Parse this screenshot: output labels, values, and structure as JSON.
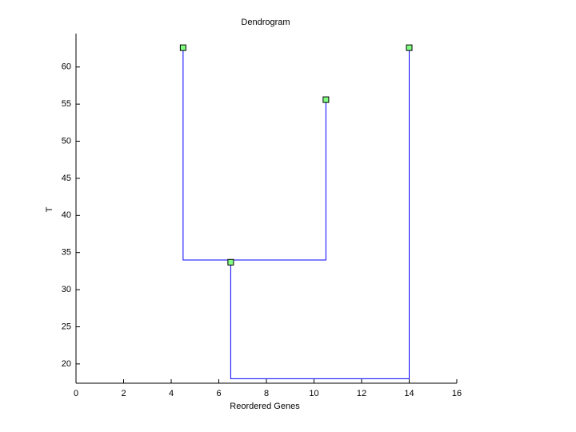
{
  "chart_data": {
    "type": "dendrogram",
    "title": "Dendrogram",
    "x_label": "Reordered Genes",
    "y_label": "T",
    "series": [
      {
        "color": "#0000ff",
        "x": [
          4.5,
          4.5,
          10.5,
          10.5,
          null,
          6.5,
          6.5,
          14,
          14
        ],
        "values": [
          62.6,
          34,
          34,
          55.6,
          null,
          34,
          18,
          18,
          62.6
        ]
      },
      {
        "color": "#80ff80",
        "marker": "square",
        "x": [
          4.5,
          10.5,
          6.5,
          14
        ],
        "values": [
          62.6,
          55.6,
          33.7,
          62.6
        ]
      }
    ],
    "xlim": [
      0,
      16
    ],
    "xticks": [
      0,
      2,
      4,
      6,
      8,
      10,
      12,
      14,
      16
    ],
    "ylim": [
      17.4,
      64.5
    ],
    "yticks": [
      20,
      25,
      30,
      35,
      40,
      45,
      50,
      55,
      60
    ],
    "grid": false
  }
}
